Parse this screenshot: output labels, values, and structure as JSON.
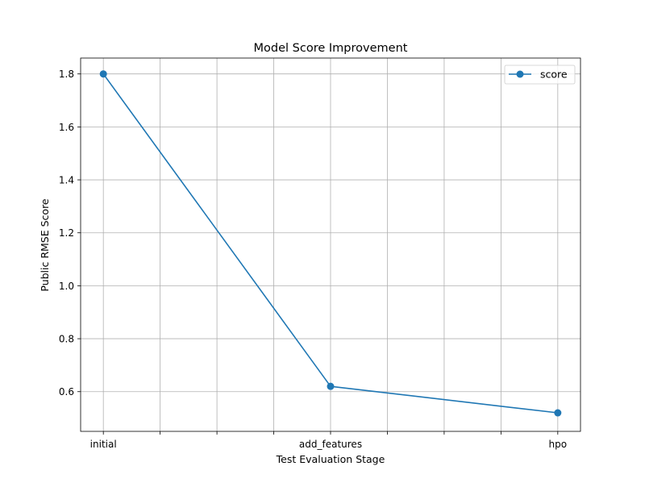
{
  "chart_data": {
    "type": "line",
    "title": "Model Score Improvement",
    "xlabel": "Test Evaluation Stage",
    "ylabel": "Public RMSE Score",
    "categories": [
      "initial",
      "add_features",
      "hpo"
    ],
    "x": [
      0,
      4,
      8
    ],
    "xlim": [
      -0.4,
      8.4
    ],
    "xticks": [
      0,
      1,
      2,
      3,
      4,
      5,
      6,
      7,
      8
    ],
    "ylim": [
      0.45,
      1.86
    ],
    "yticks": [
      0.6,
      0.8,
      1.0,
      1.2,
      1.4,
      1.6,
      1.8
    ],
    "ytick_labels": [
      "0.6",
      "0.8",
      "1.0",
      "1.2",
      "1.4",
      "1.6",
      "1.8"
    ],
    "grid": true,
    "legend": "top-right",
    "series": [
      {
        "name": "score",
        "values": [
          1.8,
          0.62,
          0.52
        ],
        "color": "#1f77b4",
        "marker": "circle"
      }
    ]
  }
}
